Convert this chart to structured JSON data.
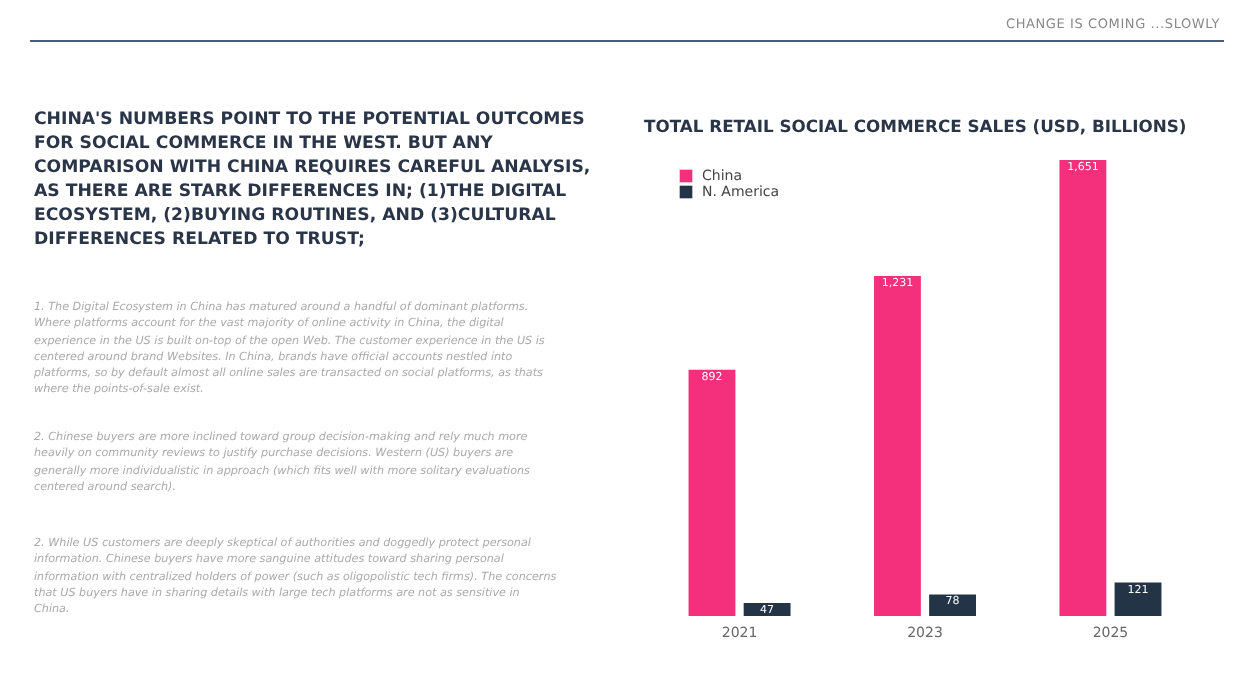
{
  "chart_data": {
    "type": "bar",
    "title": "TOTAL RETAIL SOCIAL COMMERCE SALES (USD, BILLIONS)",
    "categories": [
      "2021",
      "2023",
      "2025"
    ],
    "series": [
      {
        "name": "China",
        "color": "#f42f7b",
        "values": [
          892,
          1231,
          1651
        ],
        "value_labels": [
          "892",
          "1,231",
          "1,651"
        ]
      },
      {
        "name": "N. America",
        "color": "#243447",
        "values": [
          47,
          78,
          121
        ],
        "value_labels": [
          "47",
          "78",
          "121"
        ]
      }
    ],
    "legend": "top left",
    "annotations": [
      "CHANGE IS COMING ...SLOWLY",
      "CHINA'S NUMBERS POINT TO THE POTENTIAL OUTCOMES FOR SOCIAL COMMERCE IN THE WEST. BUT ANY COMPARISON WITH CHINA REQUIRES CAREFUL ANALYSIS, AS THERE ARE STARK DIFFERENCES IN; (1)THE DIGITAL ECOSYSTEM, (2)BUYING ROUTINES, AND (3)CULTURAL DIFFERENCES RELATED TO TRUST;",
      "1. The Digital Ecosystem in China has matured around a handful of dominant platforms. Where platforms account for the vast majority of online activity in China, the digital experience in the US is built on-top of the open Web. The customer experience in the US is centered around brand Websites. In China, brands have official accounts nestled into platforms, so by default almost all online sales are transacted on social platforms, as thats where the points-of-sale exist.",
      "2. Chinese buyers are more inclined toward group decision-making and rely much more heavily on community reviews to justify purchase decisions. Western (US) buyers are generally more individualistic in approach (which fits well with more solitary evaluations centered around search).",
      "2. While US customers are deeply skeptical of authorities and doggedly protect personal information. Chinese buyers have more sanguine attitudes toward sharing personal information with centralized holders of power (such as oligopolistic tech firms). The concerns that US buyers have in sharing details with large tech platforms are not as sensitive in China."
    ]
  }
}
